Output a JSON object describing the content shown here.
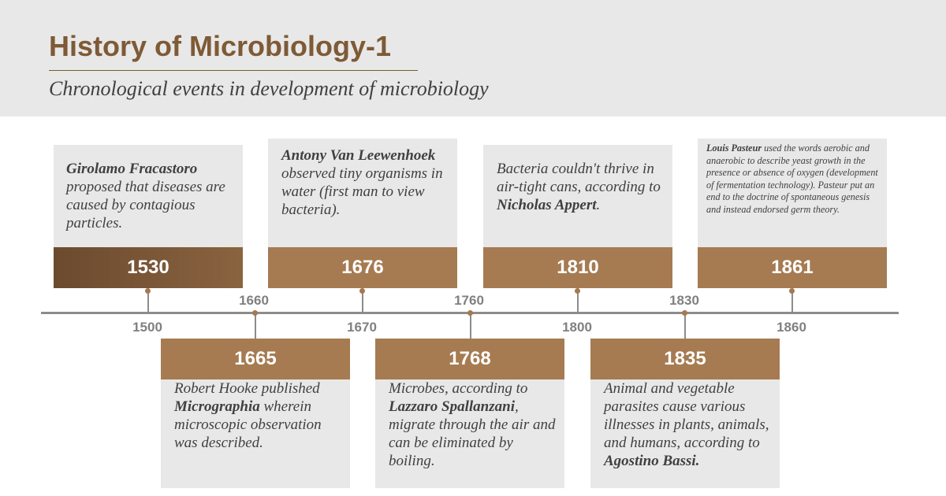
{
  "header": {
    "title": "History of Microbiology-1",
    "subtitle": "Chronological events in development of microbiology"
  },
  "axis_labels": {
    "above": [
      "1660",
      "1760",
      "1830"
    ],
    "below": [
      "1500",
      "1670",
      "1800",
      "1860"
    ]
  },
  "events": [
    {
      "year": "1530",
      "parts": [
        {
          "b": "Girolamo Fracastoro"
        },
        {
          "t": " proposed that diseases are caused by contagious particles."
        }
      ]
    },
    {
      "year": "1665",
      "parts": [
        {
          "t": "Robert Hooke published "
        },
        {
          "b": "Micrographia"
        },
        {
          "t": " wherein microscopic observation was described."
        }
      ]
    },
    {
      "year": "1676",
      "parts": [
        {
          "b": "Antony Van Leewenhoek"
        },
        {
          "t": " observed tiny organisms in water (first man to view bacteria)."
        }
      ]
    },
    {
      "year": "1768",
      "parts": [
        {
          "t": "Microbes, according to "
        },
        {
          "b": "Lazzaro Spallanzani"
        },
        {
          "t": ", migrate through the air and can be eliminated by boiling."
        }
      ]
    },
    {
      "year": "1810",
      "parts": [
        {
          "t": "Bacteria couldn't thrive in air-tight cans, according to "
        },
        {
          "b": "Nicholas Appert"
        },
        {
          "t": "."
        }
      ]
    },
    {
      "year": "1835",
      "parts": [
        {
          "t": "Animal and vegetable parasites cause various illnesses in plants, animals, and humans, according to "
        },
        {
          "b": "Agostino Bassi."
        }
      ]
    },
    {
      "year": "1861",
      "parts": [
        {
          "b": "Louis Pasteur"
        },
        {
          "t": " used the words aerobic and anaerobic  to describe yeast growth in the presence or absence of oxygen (development of fermentation technology). Pasteur put an end to the doctrine of spontaneous genesis and instead endorsed germ theory."
        }
      ]
    }
  ],
  "colors": {
    "title": "#7e5a36",
    "year_box": "#a67b52",
    "year_box_first": "#7a5535",
    "card": "#e8e8e8",
    "axis": "#8c8c8c"
  }
}
